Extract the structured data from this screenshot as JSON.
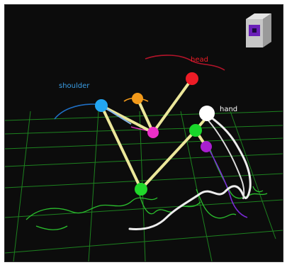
{
  "labels": {
    "head": "head",
    "shoulder": "shoulder",
    "hand": "hand"
  },
  "colors": {
    "background": "#0c0c0c",
    "grid": "#1f8f22",
    "bone": "#ece79a",
    "head_joint": "#ee1c26",
    "head_trail": "#b3142a",
    "shoulder_joint": "#22a6f2",
    "shoulder_trail": "#1f6fc4",
    "elbow_joint": "#f39a1a",
    "hip_joint": "#ec2fc8",
    "pelvis_joint": "#20d92a",
    "knee_joint": "#19d62a",
    "hand_joint": "#ffffff",
    "foot_joint": "#a81fcf",
    "hand_trail": "#e6e6e6",
    "foot_trail": "#7a2ad6",
    "ground_trail": "#2bbf2e",
    "nav_cube": "#bdbdbd",
    "nav_cube_face": "#6a1fb8"
  },
  "icons": {
    "view_cube": "view-cube-icon"
  }
}
